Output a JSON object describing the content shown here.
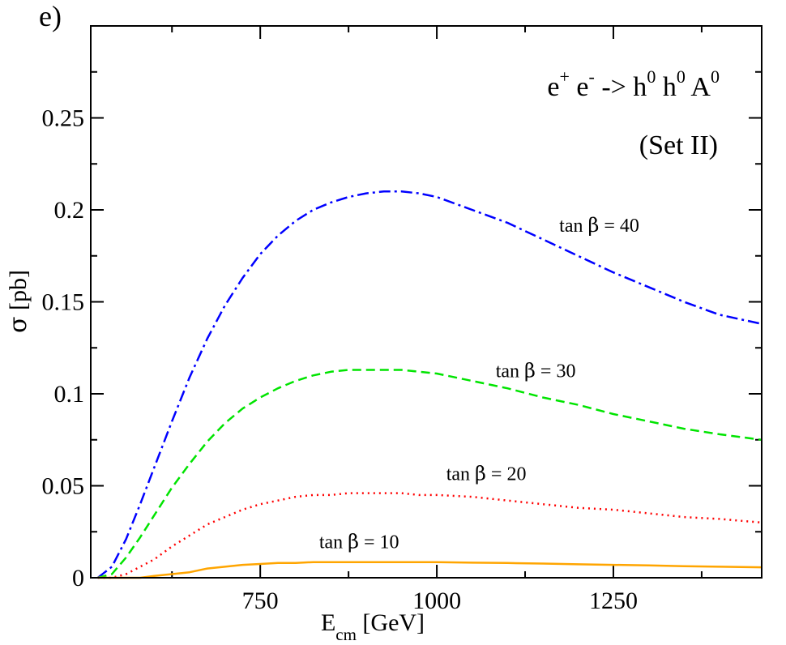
{
  "chart_data": {
    "type": "line",
    "panel_label": "e)",
    "title": "e",
    "title_sup_plus": "+",
    "title_mid": " e",
    "title_sup_minus": "-",
    "title_arrow": " -> h",
    "title_sup_0a": "0",
    "title_h2": " h",
    "title_sup_0b": "0",
    "title_A": " A",
    "title_sup_0c": "0",
    "subtitle": "(Set II)",
    "xlabel_main": "E",
    "xlabel_sub": "cm",
    "xlabel_unit": " [GeV]",
    "ylabel_sym": "σ",
    "ylabel_unit": " [pb]",
    "xlim": [
      510,
      1460
    ],
    "ylim": [
      0,
      0.3
    ],
    "x_ticks": [
      {
        "value": 750,
        "label": "750"
      },
      {
        "value": 1000,
        "label": "1000"
      },
      {
        "value": 1250,
        "label": "1250"
      }
    ],
    "y_ticks": [
      {
        "value": 0,
        "label": "0"
      },
      {
        "value": 0.05,
        "label": "0.05"
      },
      {
        "value": 0.1,
        "label": "0.1"
      },
      {
        "value": 0.15,
        "label": "0.15"
      },
      {
        "value": 0.2,
        "label": "0.2"
      },
      {
        "value": 0.25,
        "label": "0.25"
      }
    ],
    "series": [
      {
        "name": "tan β = 40",
        "label_prefix": "tan ",
        "label_sym": "β",
        "label_suffix": " = 40",
        "label_at": [
          1230,
          0.188
        ],
        "color": "#0000ff",
        "dash": "14,5,3,5",
        "x": [
          520,
          540,
          560,
          580,
          600,
          625,
          650,
          675,
          700,
          725,
          750,
          775,
          800,
          825,
          850,
          875,
          900,
          925,
          950,
          975,
          1000,
          1050,
          1100,
          1150,
          1200,
          1250,
          1300,
          1350,
          1400,
          1460
        ],
        "y": [
          0.0,
          0.006,
          0.021,
          0.04,
          0.06,
          0.085,
          0.109,
          0.13,
          0.148,
          0.163,
          0.176,
          0.186,
          0.194,
          0.2,
          0.204,
          0.207,
          0.209,
          0.21,
          0.21,
          0.209,
          0.207,
          0.2,
          0.193,
          0.184,
          0.175,
          0.166,
          0.158,
          0.15,
          0.143,
          0.138
        ]
      },
      {
        "name": "tan β = 30",
        "label_prefix": "tan ",
        "label_sym": "β",
        "label_suffix": " = 30",
        "label_at": [
          1140,
          0.109
        ],
        "color": "#00e400",
        "dash": "11,6",
        "x": [
          520,
          540,
          560,
          580,
          600,
          625,
          650,
          675,
          700,
          725,
          750,
          775,
          800,
          825,
          850,
          875,
          900,
          925,
          950,
          975,
          1000,
          1050,
          1100,
          1150,
          1200,
          1250,
          1300,
          1350,
          1400,
          1460
        ],
        "y": [
          0.0,
          0.002,
          0.011,
          0.022,
          0.034,
          0.049,
          0.062,
          0.074,
          0.084,
          0.092,
          0.098,
          0.103,
          0.107,
          0.11,
          0.112,
          0.113,
          0.113,
          0.113,
          0.113,
          0.112,
          0.111,
          0.107,
          0.103,
          0.098,
          0.094,
          0.089,
          0.085,
          0.081,
          0.078,
          0.075
        ]
      },
      {
        "name": "tan β = 20",
        "label_prefix": "tan ",
        "label_sym": "β",
        "label_suffix": " = 20",
        "label_at": [
          1070,
          0.053
        ],
        "color": "#ff0000",
        "dash": "2,5",
        "x": [
          520,
          540,
          560,
          580,
          600,
          625,
          650,
          675,
          700,
          725,
          750,
          775,
          800,
          825,
          850,
          875,
          900,
          925,
          950,
          975,
          1000,
          1050,
          1100,
          1150,
          1200,
          1250,
          1300,
          1350,
          1400,
          1460
        ],
        "y": [
          0.0,
          0.0,
          0.002,
          0.006,
          0.01,
          0.017,
          0.023,
          0.029,
          0.033,
          0.037,
          0.04,
          0.042,
          0.044,
          0.045,
          0.045,
          0.046,
          0.046,
          0.046,
          0.046,
          0.045,
          0.045,
          0.044,
          0.042,
          0.04,
          0.038,
          0.037,
          0.035,
          0.033,
          0.032,
          0.03
        ]
      },
      {
        "name": "tan β = 10",
        "label_prefix": "tan ",
        "label_sym": "β",
        "label_suffix": " = 10",
        "label_at": [
          890,
          0.016
        ],
        "color": "#ffa500",
        "dash": "",
        "x": [
          520,
          540,
          560,
          580,
          600,
          625,
          650,
          675,
          700,
          725,
          750,
          775,
          800,
          825,
          850,
          875,
          900,
          925,
          950,
          975,
          1000,
          1050,
          1100,
          1150,
          1200,
          1250,
          1300,
          1350,
          1400,
          1460
        ],
        "y": [
          0.0,
          0.0,
          0.0,
          0.0,
          0.001,
          0.002,
          0.003,
          0.005,
          0.006,
          0.007,
          0.0075,
          0.008,
          0.008,
          0.0085,
          0.0085,
          0.0085,
          0.0085,
          0.0085,
          0.0085,
          0.0085,
          0.0085,
          0.0082,
          0.008,
          0.0077,
          0.0073,
          0.007,
          0.0067,
          0.0063,
          0.006,
          0.0057
        ]
      }
    ]
  }
}
